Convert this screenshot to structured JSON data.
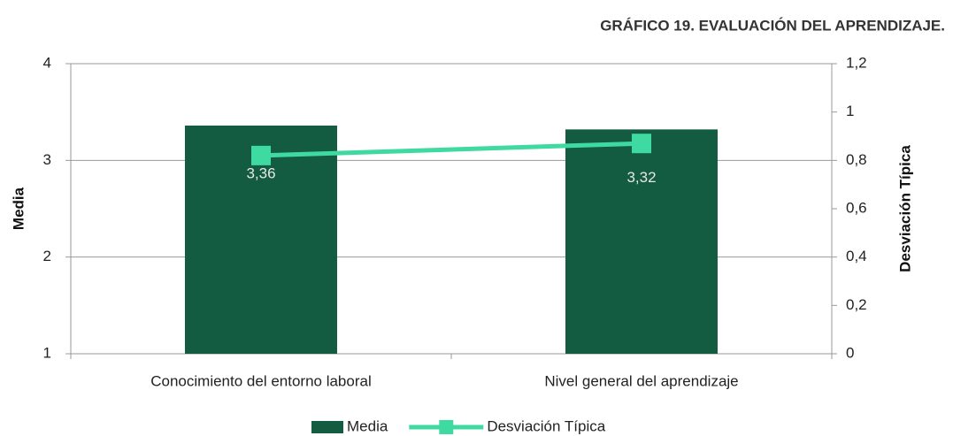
{
  "chart_data": {
    "type": "combo",
    "title": "GRÁFICO 19. EVALUACIÓN DEL APRENDIZAJE.",
    "y_label": "Media",
    "y2_label": "Desviación Típica",
    "categories": [
      "Conocimiento del entorno laboral",
      "Nivel general del aprendizaje"
    ],
    "series": [
      {
        "name": "Media",
        "type": "bar",
        "color": "#135c42",
        "values": [
          3.36,
          3.32
        ],
        "value_labels": [
          "3,36",
          "3,32"
        ]
      },
      {
        "name": "Desviación Típica",
        "type": "line",
        "axis": "y2",
        "color": "#3fdaa2",
        "values": [
          0.82,
          0.87
        ]
      }
    ],
    "ylim": [
      1,
      4
    ],
    "yticks": [
      1,
      2,
      3,
      4
    ],
    "y2lim": [
      0,
      1.2
    ],
    "y2ticks": [
      0,
      {
        "value": 0.2,
        "label": "0,2"
      },
      {
        "value": 0.4,
        "label": "0,4"
      },
      {
        "value": 0.6,
        "label": "0,6"
      },
      {
        "value": 0.8,
        "label": "0,8"
      },
      1,
      {
        "value": 1.2,
        "label": "1,2"
      }
    ],
    "grid": true,
    "legend": "bottom"
  }
}
